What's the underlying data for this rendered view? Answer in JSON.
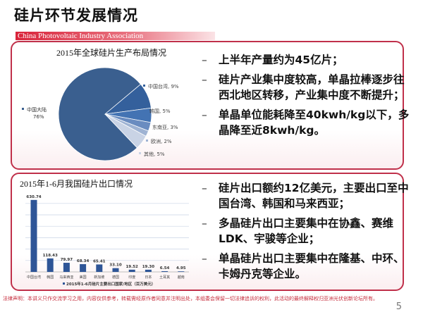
{
  "header": {
    "title": "硅片环节发展情况",
    "association": "China Photovoltaic Industry Association"
  },
  "colors": {
    "accent": "#c0304a",
    "bar": "#2e5597"
  },
  "section1": {
    "bullets": [
      "上半年产量约为45亿片；",
      "硅片产业集中度较高，单晶拉棒逐步往西北地区转移，产业集中度不断提升；",
      "单晶单位能耗降至40kwh/kg以下，多晶降至近8kwh/kg。"
    ]
  },
  "section2": {
    "bullets": [
      "硅片出口额约12亿美元，主要出口至中国台湾、韩国和马来西亚；",
      "多晶硅片出口主要集中在协鑫、赛维LDK、宇骏等企业；",
      "单晶硅片出口主要集中在隆基、中环、卡姆丹克等企业。"
    ]
  },
  "bullet_marker": "–",
  "chart_data": [
    {
      "type": "pie",
      "title": "2015年全球硅片生产布局情况",
      "slices": [
        {
          "label": "中国大陆",
          "value": 76,
          "text": "76%",
          "color": "#3a5f8f"
        },
        {
          "label": "中国台湾",
          "value": 9,
          "text": "中国台湾, 9%",
          "color": "#34609c"
        },
        {
          "label": "韩国",
          "value": 5,
          "text": "韩国, 5%",
          "color": "#4373b3"
        },
        {
          "label": "东南亚",
          "value": 3,
          "text": "东南亚, 3%",
          "color": "#6a8cc0"
        },
        {
          "label": "欧洲",
          "value": 2,
          "text": "欧洲, 2%",
          "color": "#9fb3d3"
        },
        {
          "label": "其他",
          "value": 5,
          "text": "其他, 5%",
          "color": "#c9d3e5"
        }
      ]
    },
    {
      "type": "bar",
      "title": "2015年1-6月我国硅片出口情况",
      "categories": [
        "中国台湾",
        "韩国",
        "马来西亚",
        "美国",
        "新加坡",
        "德国",
        "印度",
        "日本",
        "土耳其",
        "越南"
      ],
      "values": [
        630.74,
        118.43,
        79.97,
        68.34,
        65.41,
        33.1,
        19.52,
        19.3,
        6.54,
        4.95
      ],
      "value_labels": [
        "630.74",
        "118.43",
        "79.97",
        "68.34",
        "65.41",
        "33.10",
        "19.52",
        "19.30",
        "6.54",
        "4.95"
      ],
      "legend": "2015年1-6月硅片主要出口国家/地区（百万美元）",
      "ylim": [
        0,
        600
      ],
      "grid": true,
      "legend_position": "bottom"
    }
  ],
  "footer": {
    "disclaimer": "法律声明：本讲义只作交流学习之用，内容仅供参考，转载需经原作者同意并注明出处，本组委会保留一切法律追诉的权利，此活动的最终解释权归亚洲光伏创新论坛所有。",
    "page_number": "5"
  }
}
